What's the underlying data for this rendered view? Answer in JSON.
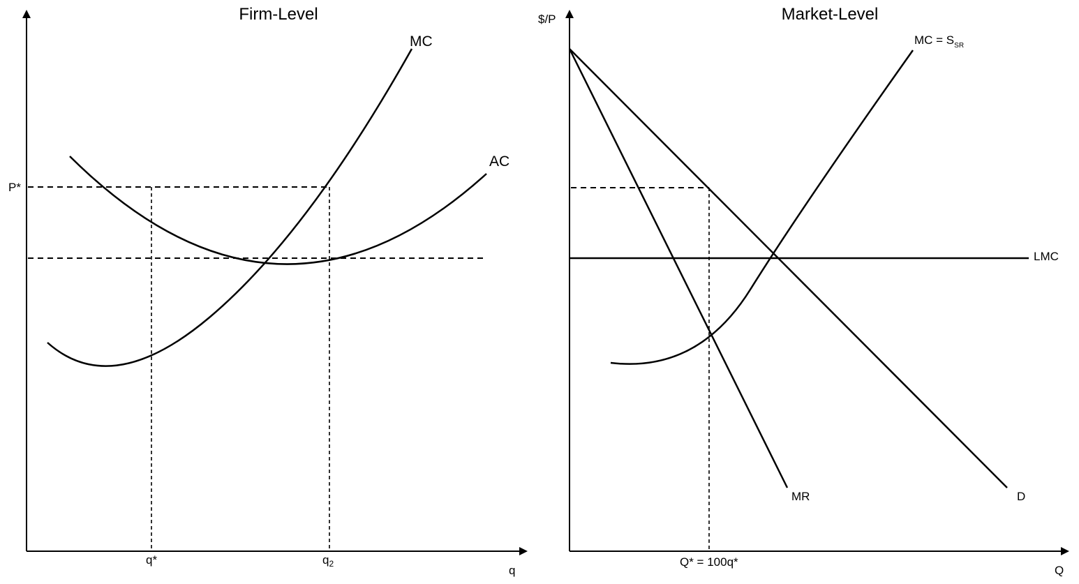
{
  "firm": {
    "title": "Firm-Level",
    "y_tick_p": "P*",
    "x_tick_q_star": "q*",
    "x_tick_q2_base": "q",
    "x_tick_q2_sub": "2",
    "x_axis_label": "q",
    "curve_mc_label": "MC",
    "curve_ac_label": "AC"
  },
  "market": {
    "title": "Market-Level",
    "y_axis_label": "$/P",
    "x_axis_label": "Q",
    "x_tick_q_star": "Q* = 100q*",
    "curve_mc_label_base": "MC = S",
    "curve_mc_label_sub": "SR",
    "curve_lmc_label": "LMC",
    "curve_mr_label": "MR",
    "curve_d_label": "D"
  }
}
